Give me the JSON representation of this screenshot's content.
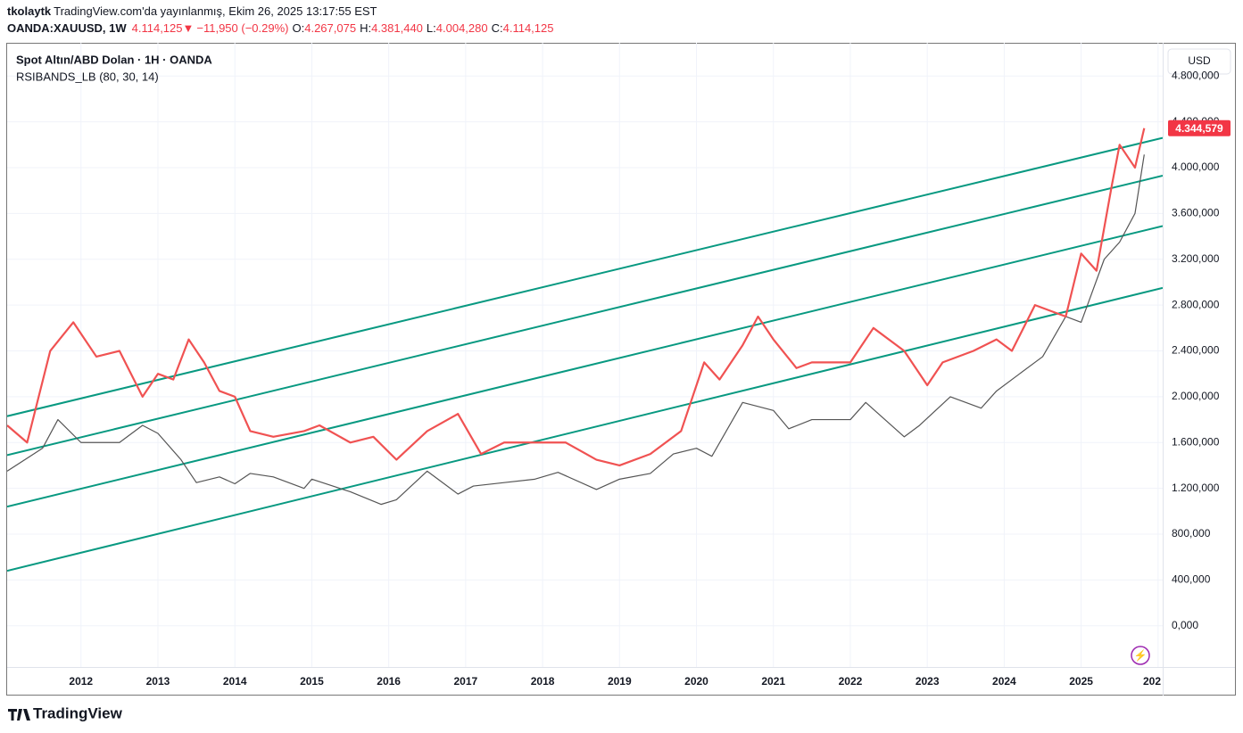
{
  "header": {
    "publisher": "tkolaytk",
    "published": "TradingView.com'da yayınlanmış, Ekim 26, 2025 13:17:55 EST",
    "symbol": "OANDA:XAUUSD, 1W",
    "last": "4.114,125",
    "arrow": "▼",
    "change": "−11,950 (−0.29%)",
    "ohlc": [
      {
        "key": "O:",
        "value": "4.267,075"
      },
      {
        "key": "H:",
        "value": "4.381,440"
      },
      {
        "key": "L:",
        "value": "4.004,280"
      },
      {
        "key": "C:",
        "value": "4.114,125"
      }
    ]
  },
  "footer": {
    "brand": "TradingView"
  },
  "chart_data": {
    "type": "line",
    "currency": "USD",
    "xlim": [
      2011.04,
      2026.06
    ],
    "xticks": [
      2012,
      2013,
      2014,
      2015,
      2016,
      2017,
      2018,
      2019,
      2020,
      2021,
      2022,
      2023,
      2024,
      2025,
      {
        "value": 2026,
        "label": "202"
      }
    ],
    "ylim": [
      -360000,
      5090000
    ],
    "yticks": [
      {
        "value": 0,
        "label": "0,000"
      },
      {
        "value": 400000,
        "label": "400,000"
      },
      {
        "value": 800000,
        "label": "800,000"
      },
      {
        "value": 1200000,
        "label": "1.200,000"
      },
      {
        "value": 1600000,
        "label": "1.600,000"
      },
      {
        "value": 2000000,
        "label": "2.000,000"
      },
      {
        "value": 2400000,
        "label": "2.400,000"
      },
      {
        "value": 2800000,
        "label": "2.800,000"
      },
      {
        "value": 3200000,
        "label": "3.200,000"
      },
      {
        "value": 3600000,
        "label": "3.600,000"
      },
      {
        "value": 4000000,
        "label": "4.000,000"
      },
      {
        "value": 4400000,
        "label": "4.400,000"
      },
      {
        "value": 4800000,
        "label": "4.800,000"
      }
    ],
    "grid": true,
    "price_label": {
      "value": 4344579,
      "label": "4.344,579",
      "color": "#f23645"
    },
    "series": [
      {
        "name": "Spot Altın/ABD Dolan · 1H · OANDA",
        "color": "#555555",
        "x": [
          2011.04,
          2011.5,
          2011.7,
          2012.0,
          2012.5,
          2012.8,
          2013.0,
          2013.3,
          2013.5,
          2013.8,
          2014.0,
          2014.2,
          2014.5,
          2014.9,
          2015.0,
          2015.5,
          2015.9,
          2016.1,
          2016.5,
          2016.9,
          2017.1,
          2017.5,
          2017.9,
          2018.2,
          2018.7,
          2019.0,
          2019.4,
          2019.7,
          2020.0,
          2020.2,
          2020.6,
          2021.0,
          2021.2,
          2021.5,
          2022.0,
          2022.2,
          2022.7,
          2022.9,
          2023.3,
          2023.7,
          2023.9,
          2024.2,
          2024.5,
          2024.8,
          2025.0,
          2025.3,
          2025.5,
          2025.7,
          2025.82
        ],
        "values": [
          1350000,
          1550000,
          1800000,
          1600000,
          1600000,
          1750000,
          1680000,
          1450000,
          1250000,
          1300000,
          1240000,
          1330000,
          1300000,
          1200000,
          1280000,
          1170000,
          1060000,
          1100000,
          1350000,
          1150000,
          1220000,
          1250000,
          1280000,
          1340000,
          1190000,
          1280000,
          1330000,
          1500000,
          1550000,
          1480000,
          1950000,
          1880000,
          1720000,
          1800000,
          1800000,
          1950000,
          1650000,
          1750000,
          2000000,
          1900000,
          2050000,
          2200000,
          2350000,
          2700000,
          2650000,
          3200000,
          3350000,
          3600000,
          4114125
        ]
      },
      {
        "name": "RSIBANDS_LB (80, 30, 14)",
        "color": "#f05252",
        "x": [
          2011.04,
          2011.3,
          2011.6,
          2011.9,
          2012.2,
          2012.5,
          2012.8,
          2013.0,
          2013.2,
          2013.4,
          2013.6,
          2013.8,
          2014.0,
          2014.2,
          2014.5,
          2014.9,
          2015.1,
          2015.5,
          2015.8,
          2016.1,
          2016.5,
          2016.9,
          2017.2,
          2017.5,
          2017.9,
          2018.3,
          2018.7,
          2019.0,
          2019.4,
          2019.8,
          2020.1,
          2020.3,
          2020.6,
          2020.8,
          2021.0,
          2021.3,
          2021.5,
          2021.8,
          2022.0,
          2022.3,
          2022.7,
          2023.0,
          2023.2,
          2023.6,
          2023.9,
          2024.1,
          2024.4,
          2024.8,
          2025.0,
          2025.2,
          2025.4,
          2025.5,
          2025.7,
          2025.82
        ],
        "values": [
          1750000,
          1600000,
          2400000,
          2650000,
          2350000,
          2400000,
          2000000,
          2200000,
          2150000,
          2500000,
          2300000,
          2050000,
          2000000,
          1700000,
          1650000,
          1700000,
          1750000,
          1600000,
          1650000,
          1450000,
          1700000,
          1850000,
          1500000,
          1600000,
          1600000,
          1600000,
          1450000,
          1400000,
          1500000,
          1700000,
          2300000,
          2150000,
          2450000,
          2700000,
          2500000,
          2250000,
          2300000,
          2300000,
          2300000,
          2600000,
          2400000,
          2100000,
          2300000,
          2400000,
          2500000,
          2400000,
          2800000,
          2700000,
          3250000,
          3100000,
          3850000,
          4200000,
          4000000,
          4344579
        ]
      }
    ],
    "lines": [
      {
        "color": "#089981",
        "x": [
          2011.04,
          2026.06
        ],
        "values": [
          1830000,
          4260000
        ]
      },
      {
        "color": "#089981",
        "x": [
          2011.04,
          2026.06
        ],
        "values": [
          1490000,
          3930000
        ]
      },
      {
        "color": "#089981",
        "x": [
          2011.04,
          2026.06
        ],
        "values": [
          1040000,
          3490000
        ]
      },
      {
        "color": "#089981",
        "x": [
          2011.04,
          2026.06
        ],
        "values": [
          480000,
          2950000
        ]
      }
    ]
  }
}
